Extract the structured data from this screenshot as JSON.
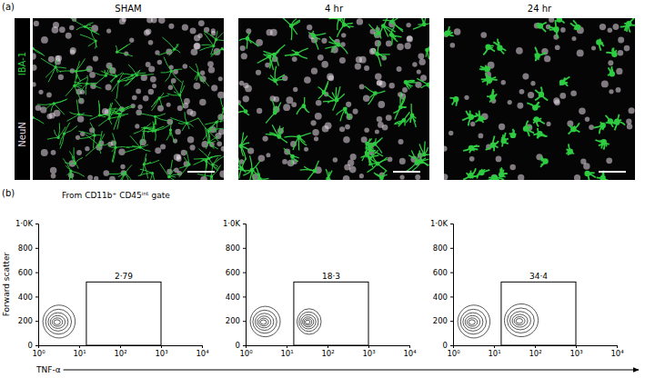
{
  "panel_a": {
    "label": "(a)",
    "titles": [
      "SHAM",
      "4 hr",
      "24 hr"
    ],
    "channels": [
      {
        "name": "IBA-1",
        "color": "#2ecc40"
      },
      {
        "name": "NeuN",
        "color": "#e8dce8"
      }
    ]
  },
  "panel_b": {
    "label": "(b)",
    "gate_source": "From CD11b⁺ CD45ⁱⁿᵗ gate",
    "x_label": "TNF-α",
    "y_label": "Forward scatter"
  },
  "chart_data": [
    {
      "type": "contour",
      "log": "x",
      "xlim": [
        1,
        10000
      ],
      "xticks": [
        {
          "value": 1,
          "label": "10⁰"
        },
        {
          "value": 10,
          "label": "10¹"
        },
        {
          "value": 100,
          "label": "10²"
        },
        {
          "value": 1000,
          "label": "10³"
        },
        {
          "value": 10000,
          "label": "10⁴"
        }
      ],
      "ylim": [
        0,
        1000
      ],
      "yticks": [
        0,
        200,
        400,
        600,
        800,
        {
          "value": 1000,
          "label": "1·0K"
        }
      ],
      "clusters": [
        {
          "x_range": [
            1.3,
            8
          ],
          "y_range": [
            60,
            330
          ]
        }
      ],
      "gate": {
        "x": [
          15,
          1000
        ],
        "y": [
          0,
          520
        ]
      },
      "values": [
        2.79
      ],
      "value_labels": [
        "2·79"
      ],
      "data_labels": true
    },
    {
      "type": "contour",
      "log": "x",
      "xlim": [
        1,
        10000
      ],
      "xticks": [
        {
          "value": 1,
          "label": "10⁰"
        },
        {
          "value": 10,
          "label": "10¹"
        },
        {
          "value": 100,
          "label": "10²"
        },
        {
          "value": 1000,
          "label": "10³"
        },
        {
          "value": 10000,
          "label": "10⁴"
        }
      ],
      "ylim": [
        0,
        1000
      ],
      "yticks": [
        0,
        200,
        400,
        600,
        800,
        {
          "value": 1000,
          "label": "1·0K"
        }
      ],
      "clusters": [
        {
          "x_range": [
            1.3,
            7
          ],
          "y_range": [
            70,
            320
          ]
        },
        {
          "x_range": [
            18,
            70
          ],
          "y_range": [
            90,
            300
          ]
        }
      ],
      "gate": {
        "x": [
          15,
          1000
        ],
        "y": [
          0,
          520
        ]
      },
      "values": [
        18.3
      ],
      "value_labels": [
        "18·3"
      ],
      "data_labels": true
    },
    {
      "type": "contour",
      "log": "x",
      "xlim": [
        1,
        10000
      ],
      "xticks": [
        {
          "value": 1,
          "label": "10⁰"
        },
        {
          "value": 10,
          "label": "10¹"
        },
        {
          "value": 100,
          "label": "10²"
        },
        {
          "value": 1000,
          "label": "10³"
        },
        {
          "value": 10000,
          "label": "10⁴"
        }
      ],
      "ylim": [
        0,
        1000
      ],
      "yticks": [
        0,
        200,
        400,
        600,
        800,
        {
          "value": 1000,
          "label": "1·0K"
        }
      ],
      "clusters": [
        {
          "x_range": [
            1.3,
            8
          ],
          "y_range": [
            60,
            330
          ]
        },
        {
          "x_range": [
            18,
            120
          ],
          "y_range": [
            70,
            340
          ]
        }
      ],
      "gate": {
        "x": [
          15,
          1000
        ],
        "y": [
          0,
          520
        ]
      },
      "values": [
        34.4
      ],
      "value_labels": [
        "34·4"
      ],
      "data_labels": true
    }
  ]
}
